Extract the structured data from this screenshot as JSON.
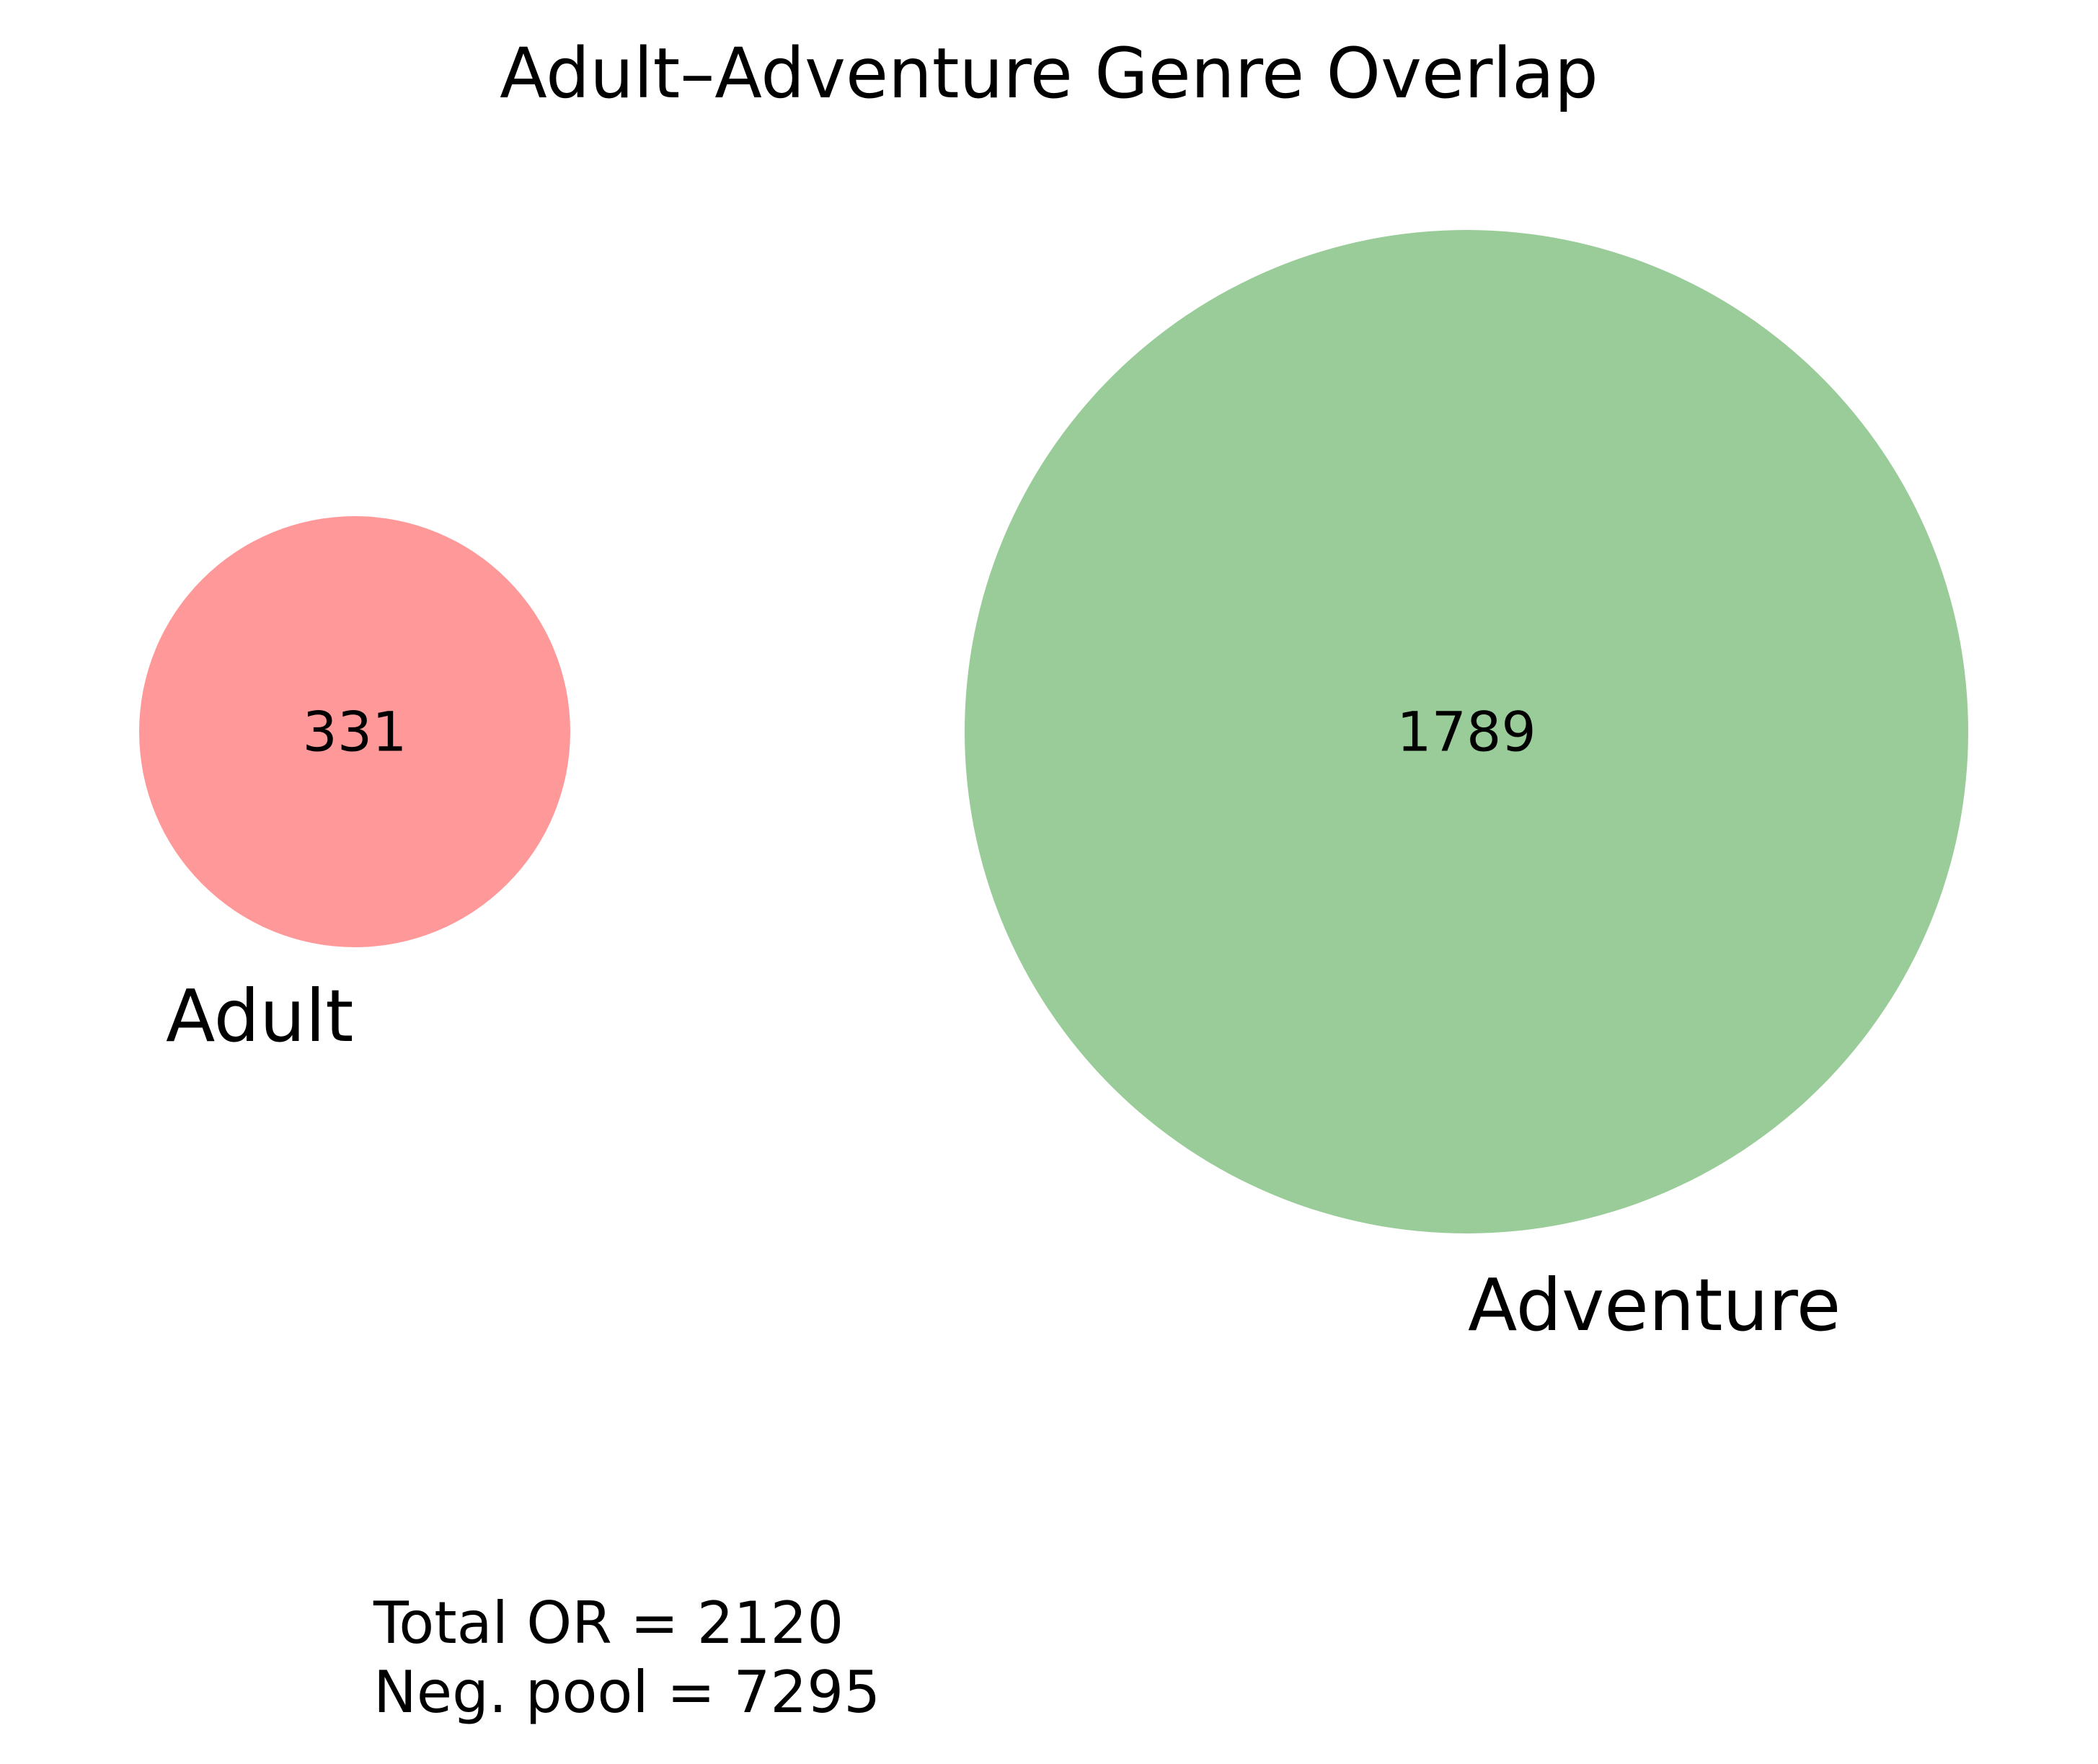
{
  "title": "Adult–Adventure Genre Overlap",
  "chart_data": {
    "type": "venn",
    "sets": [
      {
        "name": "Adult",
        "count": 331,
        "color": "#ff9999"
      },
      {
        "name": "Adventure",
        "count": 1789,
        "color": "#99cc99"
      }
    ],
    "intersection": 0
  },
  "annotations": {
    "total_line": "Total OR = 2120",
    "pool_line": "Neg. pool = 7295"
  }
}
